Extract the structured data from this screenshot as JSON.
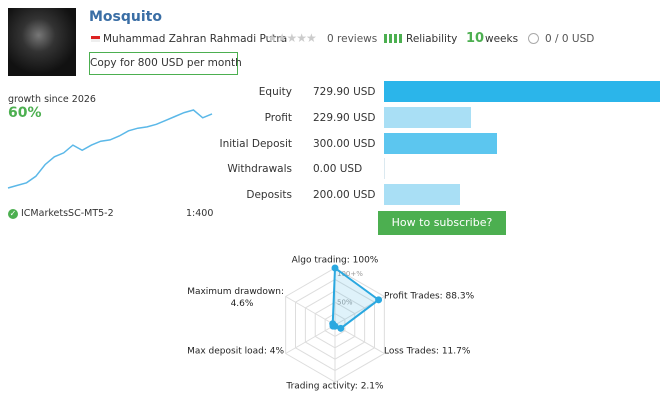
{
  "header": {
    "name": "Mosquito",
    "author": "Muhammad Zahran Rahmadi Putra",
    "reviews": "0 reviews",
    "reliability": "Reliability",
    "weeks_value": "10",
    "weeks_unit": "weeks",
    "subscribers": "0 / 0 USD",
    "copy_button": "Copy for 800 USD per month"
  },
  "growth": {
    "label": "growth since 2026",
    "value": "60%",
    "broker": "ICMarketsSC-MT5-2",
    "leverage": "1:400",
    "color": "#5bb8e8",
    "curve": [
      0,
      2,
      4,
      9,
      18,
      24,
      27,
      33,
      29,
      33,
      36,
      37,
      40,
      44,
      46,
      47,
      49,
      52,
      55,
      58,
      60,
      54,
      57
    ]
  },
  "balance": {
    "rows": [
      {
        "label": "Equity",
        "value": 729.9,
        "value_label": "729.90 USD",
        "color": "#2bb5ea"
      },
      {
        "label": "Profit",
        "value": 229.9,
        "value_label": "229.90 USD",
        "color": "#a9dff5"
      },
      {
        "label": "Initial Deposit",
        "value": 300.0,
        "value_label": "300.00 USD",
        "color": "#5cc6ef"
      },
      {
        "label": "Withdrawals",
        "value": 0.0,
        "value_label": "0.00 USD",
        "color": "#a9dff5"
      },
      {
        "label": "Deposits",
        "value": 200.0,
        "value_label": "200.00 USD",
        "color": "#a9dff5"
      }
    ],
    "subscribe_button": "How to subscribe?"
  },
  "radar": {
    "color": "#2aa8e0",
    "axes": [
      {
        "label": "Algo trading: 100%",
        "value": 100
      },
      {
        "label": "Profit Trades: 88.3%",
        "value": 88.3
      },
      {
        "label": "Loss Trades: 11.7%",
        "value": 11.7
      },
      {
        "label": "Trading activity: 2.1%",
        "value": 2.1
      },
      {
        "label": "Max deposit load: 4%",
        "value": 4
      },
      {
        "label": "Maximum drawdown: 4.6%",
        "value": 4.6
      }
    ],
    "ring_ticks": [
      {
        "value": 100,
        "label": "100+%"
      },
      {
        "value": 50,
        "label": "50%"
      }
    ]
  }
}
